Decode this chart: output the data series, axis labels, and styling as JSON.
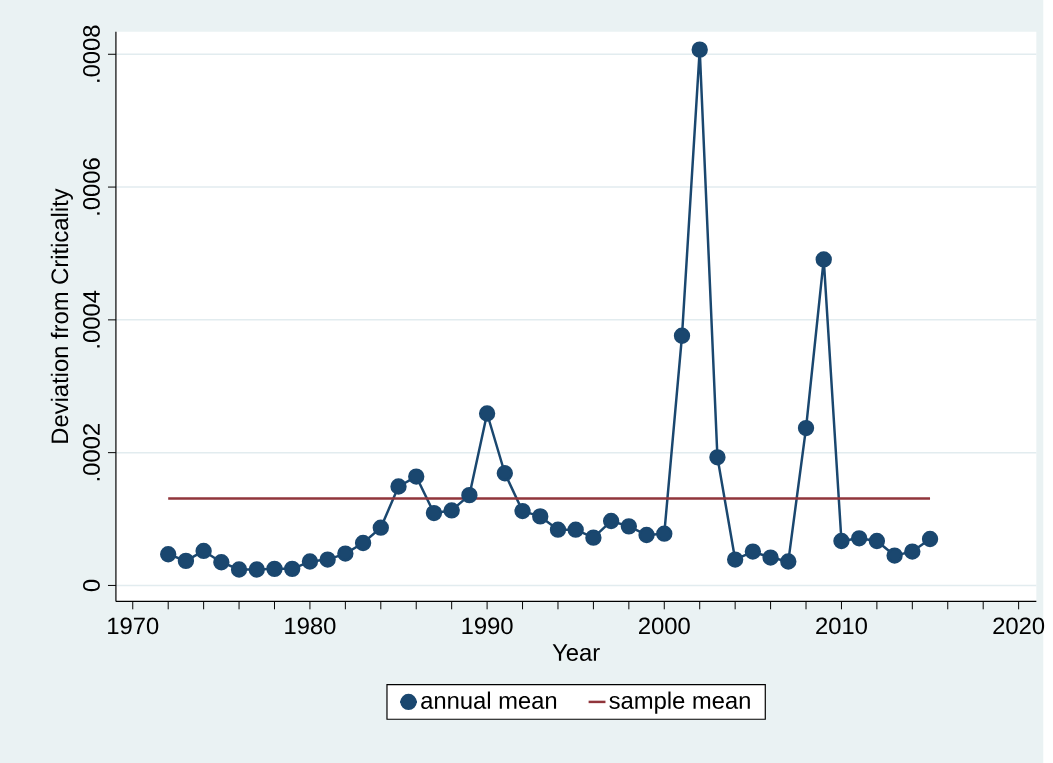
{
  "chart_data": {
    "type": "line",
    "xlabel": "Year",
    "ylabel": "Deviation from Criticality",
    "xlim": [
      1969.05,
      2021
    ],
    "ylim": [
      -2.4e-05,
      0.000834
    ],
    "xticks": [
      1970,
      {
        "value": 1972,
        "label": null
      },
      {
        "value": 1974,
        "label": null
      },
      {
        "value": 1976,
        "label": null
      },
      {
        "value": 1978,
        "label": null
      },
      1980,
      {
        "value": 1982,
        "label": null
      },
      {
        "value": 1984,
        "label": null
      },
      {
        "value": 1986,
        "label": null
      },
      {
        "value": 1988,
        "label": null
      },
      1990,
      {
        "value": 1992,
        "label": null
      },
      {
        "value": 1994,
        "label": null
      },
      {
        "value": 1996,
        "label": null
      },
      {
        "value": 1998,
        "label": null
      },
      2000,
      {
        "value": 2002,
        "label": null
      },
      {
        "value": 2004,
        "label": null
      },
      {
        "value": 2006,
        "label": null
      },
      {
        "value": 2008,
        "label": null
      },
      2010,
      {
        "value": 2012,
        "label": null
      },
      {
        "value": 2014,
        "label": null
      },
      {
        "value": 2016,
        "label": null
      },
      {
        "value": 2018,
        "label": null
      },
      2020
    ],
    "yticks": [
      0,
      {
        "value": 0.0002,
        "label": ".0002"
      },
      {
        "value": 0.0004,
        "label": ".0004"
      },
      {
        "value": 0.0006,
        "label": ".0006"
      },
      {
        "value": 0.0008,
        "label": ".0008"
      }
    ],
    "grid": "y",
    "legend": "bottom",
    "series": [
      {
        "name": "annual mean",
        "color": "#1a476f",
        "marker": "circle",
        "x": [
          1972,
          1973,
          1974,
          1975,
          1976,
          1977,
          1978,
          1979,
          1980,
          1981,
          1982,
          1983,
          1984,
          1985,
          1986,
          1987,
          1988,
          1989,
          1990,
          1991,
          1992,
          1993,
          1994,
          1995,
          1996,
          1997,
          1998,
          1999,
          2000,
          2001,
          2002,
          2003,
          2004,
          2005,
          2006,
          2007,
          2008,
          2009,
          2010,
          2011,
          2012,
          2013,
          2014,
          2015
        ],
        "values": [
          4.7e-05,
          3.7e-05,
          5.2e-05,
          3.5e-05,
          2.4e-05,
          2.4e-05,
          2.5e-05,
          2.5e-05,
          3.6e-05,
          3.9e-05,
          4.8e-05,
          6.4e-05,
          8.7e-05,
          0.000149,
          0.000164,
          0.000109,
          0.000113,
          0.000136,
          0.000259,
          0.000169,
          0.000112,
          0.000104,
          8.4e-05,
          8.4e-05,
          7.2e-05,
          9.7e-05,
          8.9e-05,
          7.6e-05,
          7.8e-05,
          0.000376,
          0.000807,
          0.000193,
          3.9e-05,
          5.1e-05,
          4.2e-05,
          3.6e-05,
          0.000237,
          0.000491,
          6.7e-05,
          7.1e-05,
          6.7e-05,
          4.5e-05,
          5.1e-05,
          7e-05
        ]
      },
      {
        "name": "sample mean",
        "color": "#90353b",
        "marker": "none",
        "x": [
          1972,
          2015
        ],
        "values": [
          0.000131,
          0.000131
        ]
      }
    ]
  }
}
